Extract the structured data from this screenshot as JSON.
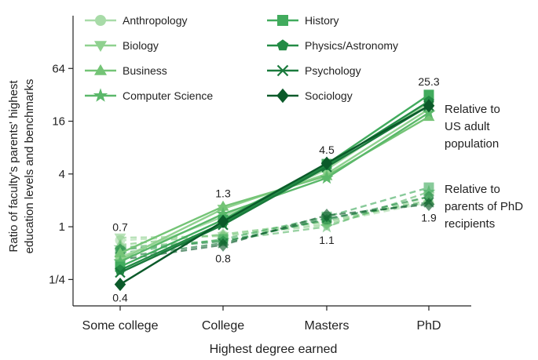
{
  "chart_data": {
    "type": "line",
    "xlabel": "Highest degree earned",
    "ylabel_lines": [
      "Ratio of faculty's parents' highest",
      "education levels and benchmarks"
    ],
    "x": [
      "Some college",
      "College",
      "Masters",
      "PhD"
    ],
    "y_scale": "log2",
    "ylim": [
      0.125,
      256
    ],
    "yticks": [
      {
        "value": 0.25,
        "label": "1/4"
      },
      {
        "value": 1,
        "label": "1"
      },
      {
        "value": 4,
        "label": "4"
      },
      {
        "value": 16,
        "label": "16"
      },
      {
        "value": 64,
        "label": "64"
      }
    ],
    "groups": [
      {
        "label": "Relative to US adult population",
        "lines": [
          "Relative to",
          "US adult",
          "population"
        ],
        "style": "solid"
      },
      {
        "label": "Relative to parents of PhD recipients",
        "lines": [
          "Relative to",
          "parents of PhD",
          "recipients"
        ],
        "style": "dashed"
      }
    ],
    "series": [
      {
        "name": "Anthropology",
        "marker": "circle",
        "color": "#a8dba8",
        "us_population": [
          0.45,
          1.3,
          4.5,
          26
        ],
        "phd_parents": [
          0.7,
          0.8,
          1.1,
          1.9
        ]
      },
      {
        "name": "Biology",
        "marker": "triangle-down",
        "color": "#8fd18f",
        "us_population": [
          0.42,
          1.6,
          4.0,
          22
        ],
        "phd_parents": [
          0.75,
          0.78,
          1.05,
          2.2
        ]
      },
      {
        "name": "Business",
        "marker": "triangle-up",
        "color": "#74c476",
        "us_population": [
          0.5,
          1.7,
          3.8,
          18
        ],
        "phd_parents": [
          0.62,
          0.82,
          1.15,
          2.0
        ]
      },
      {
        "name": "Computer Science",
        "marker": "star",
        "color": "#5bb86a",
        "us_population": [
          0.4,
          1.4,
          3.6,
          20
        ],
        "phd_parents": [
          0.58,
          0.7,
          1.0,
          2.5
        ]
      },
      {
        "name": "History",
        "marker": "square",
        "color": "#41ab5d",
        "us_population": [
          0.35,
          1.2,
          5.2,
          32
        ],
        "phd_parents": [
          0.5,
          0.72,
          1.3,
          2.8
        ]
      },
      {
        "name": "Physics/Astronomy",
        "marker": "pentagon",
        "color": "#238b45",
        "us_population": [
          0.32,
          1.1,
          5.0,
          27
        ],
        "phd_parents": [
          0.55,
          0.68,
          1.2,
          2.2
        ]
      },
      {
        "name": "Psychology",
        "marker": "x",
        "color": "#1a7a3c",
        "us_population": [
          0.3,
          1.05,
          4.8,
          24
        ],
        "phd_parents": [
          0.45,
          0.65,
          1.25,
          1.9
        ]
      },
      {
        "name": "Sociology",
        "marker": "diamond",
        "color": "#0b5a2a",
        "us_population": [
          0.22,
          1.15,
          5.3,
          24
        ],
        "phd_parents": [
          0.42,
          0.62,
          1.35,
          1.8
        ]
      }
    ],
    "annotations": [
      {
        "text": "0.7",
        "x": "Some college",
        "y": 0.7,
        "placement": "above"
      },
      {
        "text": "0.4",
        "x": "Some college",
        "y": 0.22,
        "placement": "below"
      },
      {
        "text": "1.3",
        "x": "College",
        "y": 1.7,
        "placement": "above"
      },
      {
        "text": "0.8",
        "x": "College",
        "y": 0.62,
        "placement": "below"
      },
      {
        "text": "4.5",
        "x": "Masters",
        "y": 5.3,
        "placement": "above"
      },
      {
        "text": "1.1",
        "x": "Masters",
        "y": 1.0,
        "placement": "below"
      },
      {
        "text": "25.3",
        "x": "PhD",
        "y": 32,
        "placement": "above"
      },
      {
        "text": "1.9",
        "x": "PhD",
        "y": 1.8,
        "placement": "below"
      }
    ],
    "legend_position": "top-left, two columns",
    "grid": false
  }
}
